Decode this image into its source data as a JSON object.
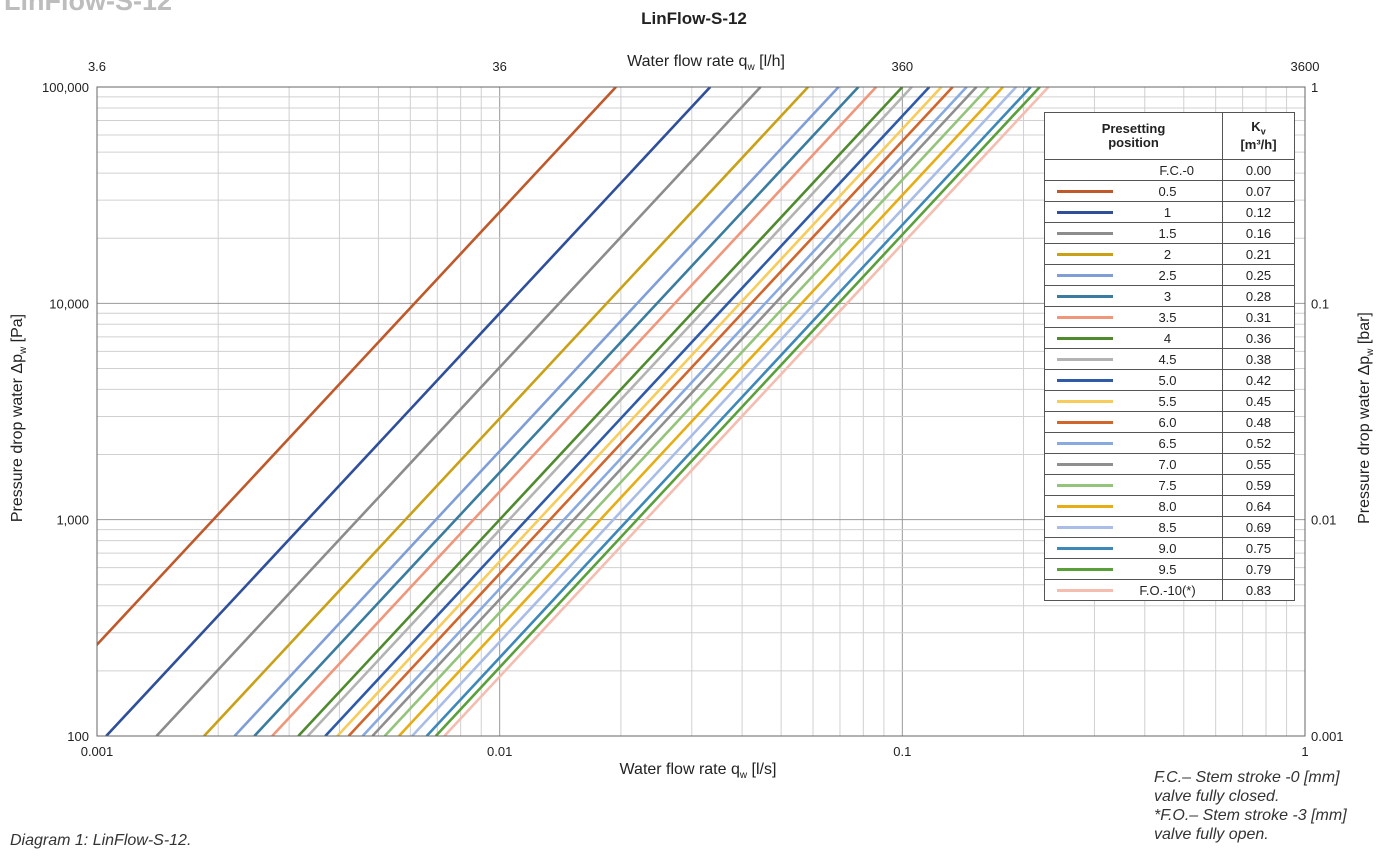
{
  "page": {
    "heading": "LinFlow-S-12",
    "caption": "Diagram 1: LinFlow-S-12.",
    "footnotes": [
      "F.C.– Stem stroke -0 [mm]",
      "valve fully closed.",
      "*F.O.– Stem stroke -3 [mm]",
      "valve fully open."
    ]
  },
  "legend": {
    "header_position": [
      "Presetting",
      "position"
    ],
    "header_kv": "K",
    "header_kv_sub": "v",
    "header_kv_unit": "[m³/h]",
    "rows": [
      {
        "position": "F.C.-0",
        "kv": "0.00",
        "color": null
      },
      {
        "position": "0.5",
        "kv": "0.07",
        "color": "#c0592a"
      },
      {
        "position": "1",
        "kv": "0.12",
        "color": "#2f4f9a"
      },
      {
        "position": "1.5",
        "kv": "0.16",
        "color": "#8c8c8c"
      },
      {
        "position": "2",
        "kv": "0.21",
        "color": "#c9a016"
      },
      {
        "position": "2.5",
        "kv": "0.25",
        "color": "#7f9ed8"
      },
      {
        "position": "3",
        "kv": "0.28",
        "color": "#3a7ba0"
      },
      {
        "position": "3.5",
        "kv": "0.31",
        "color": "#f0967a"
      },
      {
        "position": "4",
        "kv": "0.36",
        "color": "#4f8a2f"
      },
      {
        "position": "4.5",
        "kv": "0.38",
        "color": "#b3b3b3"
      },
      {
        "position": "5.0",
        "kv": "0.42",
        "color": "#2e5aa8"
      },
      {
        "position": "5.5",
        "kv": "0.45",
        "color": "#f7cc5a"
      },
      {
        "position": "6.0",
        "kv": "0.48",
        "color": "#d0662c"
      },
      {
        "position": "6.5",
        "kv": "0.52",
        "color": "#88aae0"
      },
      {
        "position": "7.0",
        "kv": "0.55",
        "color": "#8f8f8f"
      },
      {
        "position": "7.5",
        "kv": "0.59",
        "color": "#94c47a"
      },
      {
        "position": "8.0",
        "kv": "0.64",
        "color": "#e6ad14"
      },
      {
        "position": "8.5",
        "kv": "0.69",
        "color": "#a9bde6"
      },
      {
        "position": "9.0",
        "kv": "0.75",
        "color": "#3d88b8"
      },
      {
        "position": "9.5",
        "kv": "0.79",
        "color": "#5aa03a"
      },
      {
        "position": "F.O.-10(*)",
        "kv": "0.83",
        "color": "#f4bdb0"
      }
    ]
  },
  "chart_data": {
    "type": "line",
    "title": "LinFlow-S-12",
    "xlabel": "Water flow rate q",
    "xlabel_sub": "w",
    "xlabel_unit": " [l/s]",
    "x2label": "Water flow rate q",
    "x2label_sub": "w",
    "x2label_unit": " [l/h]",
    "ylabel": "Pressure drop water  Δp",
    "ylabel_sub": "w",
    "ylabel_unit": " [Pa]",
    "y2label": "Pressure drop water  Δp",
    "y2label_sub": "w",
    "y2label_unit": " [bar]",
    "x_scale": "log",
    "y_scale": "log",
    "xlim": [
      0.001,
      1
    ],
    "ylim": [
      100,
      100000
    ],
    "x_ticks": [
      0.001,
      0.01,
      0.1,
      1
    ],
    "x_tick_labels": [
      "0.001",
      "0.01",
      "0.1",
      "1"
    ],
    "x2_ticks": [
      0.001,
      0.01,
      0.1,
      1
    ],
    "x2_tick_labels": [
      "3.6",
      "36",
      "360",
      "3600"
    ],
    "y_ticks": [
      100,
      1000,
      10000,
      100000
    ],
    "y_tick_labels": [
      "100",
      "1,000",
      "10,000",
      "100,000"
    ],
    "y2_ticks": [
      100,
      1000,
      10000,
      100000
    ],
    "y2_tick_labels": [
      "0.001",
      "0.01",
      "0.1",
      "1"
    ],
    "grid": true,
    "legend_placement": "right",
    "series": [
      {
        "name": "0.5",
        "kv": 0.07
      },
      {
        "name": "1",
        "kv": 0.12
      },
      {
        "name": "1.5",
        "kv": 0.16
      },
      {
        "name": "2",
        "kv": 0.21
      },
      {
        "name": "2.5",
        "kv": 0.25
      },
      {
        "name": "3",
        "kv": 0.28
      },
      {
        "name": "3.5",
        "kv": 0.31
      },
      {
        "name": "4",
        "kv": 0.36
      },
      {
        "name": "4.5",
        "kv": 0.38
      },
      {
        "name": "5.0",
        "kv": 0.42
      },
      {
        "name": "5.5",
        "kv": 0.45
      },
      {
        "name": "6.0",
        "kv": 0.48
      },
      {
        "name": "6.5",
        "kv": 0.52
      },
      {
        "name": "7.0",
        "kv": 0.55
      },
      {
        "name": "7.5",
        "kv": 0.59
      },
      {
        "name": "8.0",
        "kv": 0.64
      },
      {
        "name": "8.5",
        "kv": 0.69
      },
      {
        "name": "9.0",
        "kv": 0.75
      },
      {
        "name": "9.5",
        "kv": 0.79
      },
      {
        "name": "F.O.-10(*)",
        "kv": 0.83
      }
    ]
  }
}
